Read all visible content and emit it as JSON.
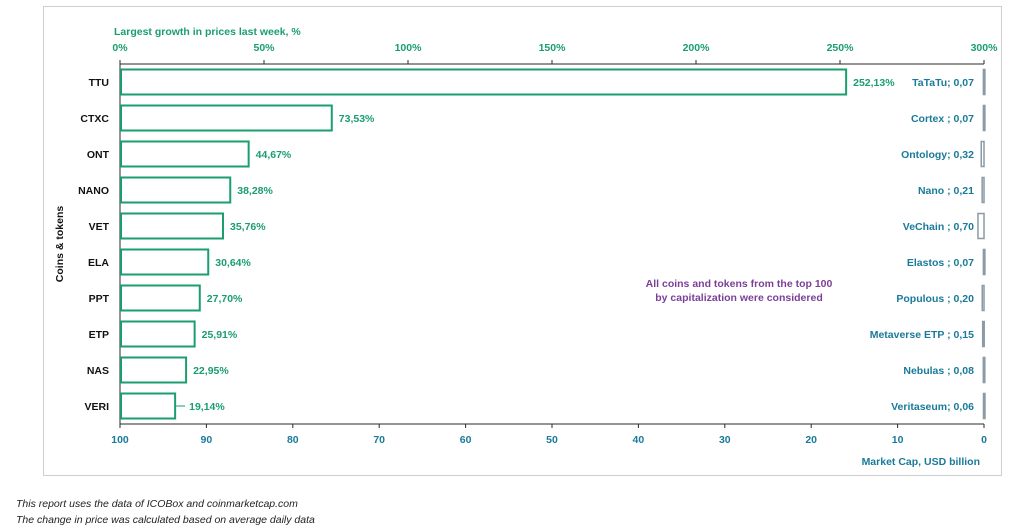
{
  "chart_data": {
    "type": "bar",
    "orientation": "horizontal",
    "title": "Largest growth in prices last week, %",
    "ylabel": "Coins & tokens",
    "top_axis": {
      "range": [
        0,
        300
      ],
      "ticks": [
        "0%",
        "50%",
        "100%",
        "150%",
        "200%",
        "250%",
        "300%"
      ]
    },
    "bottom_axis": {
      "label": "Market Cap,  USD billion",
      "range": [
        100,
        0
      ],
      "ticks": [
        "100",
        "90",
        "80",
        "70",
        "60",
        "50",
        "40",
        "30",
        "20",
        "10",
        "0"
      ]
    },
    "categories": [
      "TTU",
      "CTXC",
      "ONT",
      "NANO",
      "VET",
      "ELA",
      "PPT",
      "ETP",
      "NAS",
      "VERI"
    ],
    "series": [
      {
        "values": [
          252.13,
          73.53,
          44.67,
          38.28,
          35.76,
          30.64,
          27.7,
          25.91,
          22.95,
          19.14
        ],
        "labels": [
          "252,13%",
          "73,53%",
          "44,67%",
          "38,28%",
          "35,76%",
          "30,64%",
          "27,70%",
          "25,91%",
          "22,95%",
          "19,14%"
        ]
      },
      {
        "values": [
          0.07,
          0.07,
          0.32,
          0.21,
          0.7,
          0.07,
          0.2,
          0.15,
          0.08,
          0.06
        ],
        "labels": [
          "TaTaTu; 0,07",
          "Cortex ; 0,07",
          "Ontology; 0,32",
          "Nano ; 0,21",
          "VeChain ; 0,70",
          "Elastos ; 0,07",
          "Populous  ; 0,20",
          "Metaverse ETP ; 0,15",
          "Nebulas ; 0,08",
          "Veritaseum; 0,06"
        ]
      }
    ],
    "annotation": [
      "All coins and tokens from the top 100",
      "by capitalization were considered"
    ],
    "colors": {
      "growth": "#1a9e6e",
      "market_cap": "#1a7a9a",
      "cap_bar": "#8a9aa6",
      "annotation": "#7b3f98"
    }
  },
  "footnotes": [
    "This report uses the data of ICOBox and coinmarketcap.com",
    "The change in price was calculated based on average daily data"
  ]
}
